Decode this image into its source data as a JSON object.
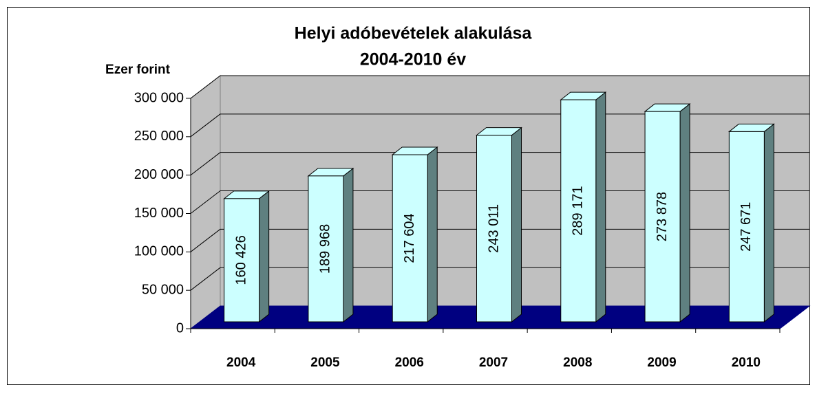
{
  "chart_data": {
    "type": "bar3d",
    "title": [
      "Helyi adóbevételek alakulása",
      "2004-2010 év"
    ],
    "y_label": "Ezer forint",
    "categories": [
      "2004",
      "2005",
      "2006",
      "2007",
      "2008",
      "2009",
      "2010"
    ],
    "values": [
      160426,
      189968,
      217604,
      243011,
      289171,
      273878,
      247671
    ],
    "value_labels": [
      "160 426",
      "189 968",
      "217 604",
      "243 011",
      "289 171",
      "273 878",
      "247 671"
    ],
    "color": "#ccffff",
    "ylim": [
      0,
      300000
    ],
    "yticks": [
      0,
      {
        "value": 50000,
        "label": "50 000"
      },
      {
        "value": 100000,
        "label": "100 000"
      },
      {
        "value": 150000,
        "label": "150 000"
      },
      {
        "value": 200000,
        "label": "200 000"
      },
      {
        "value": 250000,
        "label": "250 000"
      },
      {
        "value": 300000,
        "label": "300 000"
      }
    ],
    "grid": true
  }
}
